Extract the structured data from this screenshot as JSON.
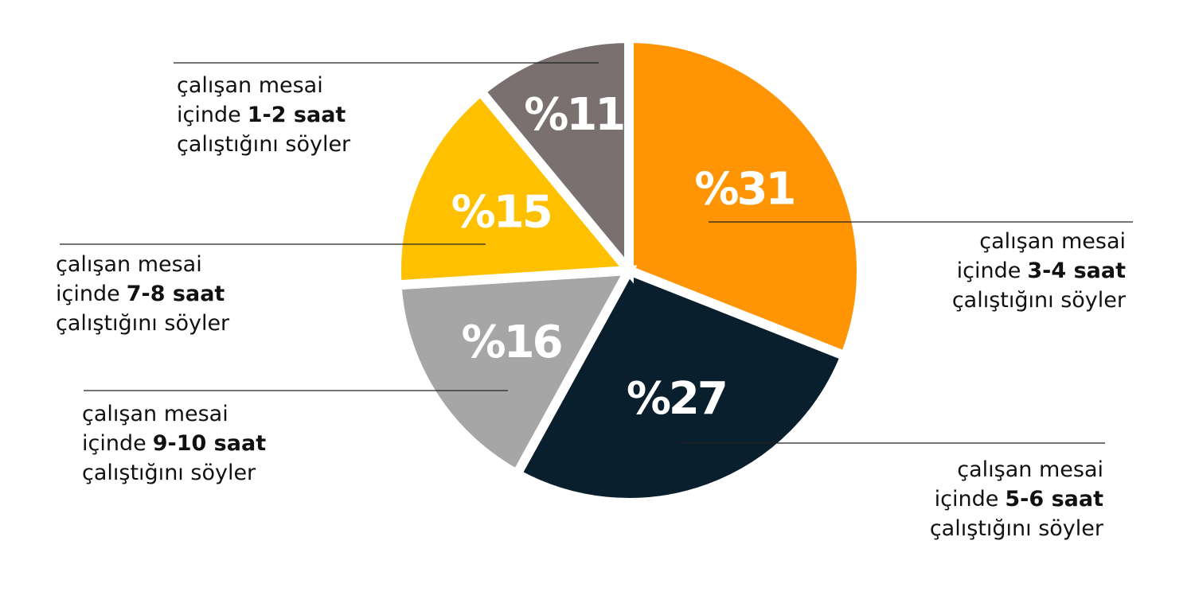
{
  "chart_data": {
    "type": "pie",
    "categories": [
      "3-4 saat",
      "5-6 saat",
      "9-10 saat",
      "7-8 saat",
      "1-2 saat"
    ],
    "values": [
      31,
      27,
      16,
      15,
      11
    ],
    "value_labels": [
      "%31",
      "%27",
      "%16",
      "%15",
      "%11"
    ],
    "colors": [
      "#ff9505",
      "#0a1f2d",
      "#a6a6a6",
      "#ffc000",
      "#7a7070"
    ],
    "label_line1": "çalışan mesai",
    "label_line2": "içinde",
    "label_line3": "çalıştığını söyler"
  }
}
